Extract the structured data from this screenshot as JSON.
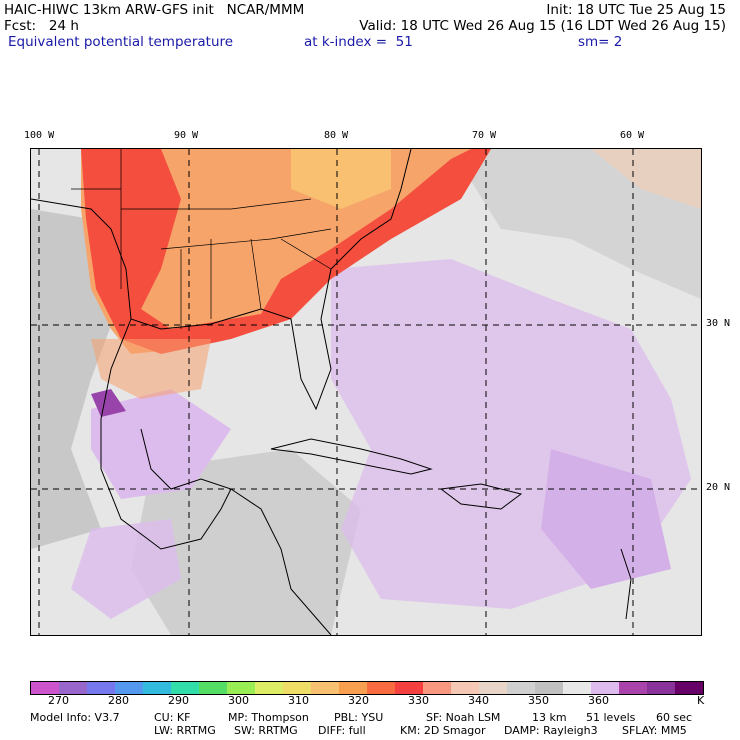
{
  "header": {
    "line1_left": "HAIC-HIWC 13km ARW-GFS init   NCAR/MMM",
    "line1_right": "Init: 18 UTC Tue 25 Aug 15",
    "line2_left": "Fcst:   24 h",
    "line2_right": "Valid: 18 UTC Wed 26 Aug 15 (16 LDT Wed 26 Aug 15)",
    "field_name": "Equivalent potential temperature",
    "level": "at k-index =  51",
    "smoothing": "sm= 2"
  },
  "map": {
    "lon_labels": [
      "100 W",
      "90 W",
      "80 W",
      "70 W",
      "60 W"
    ],
    "lat_labels": [
      "30 N",
      "20 N"
    ]
  },
  "colorbar": {
    "colors": [
      "#cc55cc",
      "#9966cc",
      "#7777ee",
      "#5599ee",
      "#33bbdd",
      "#33ddaa",
      "#55dd66",
      "#99ee55",
      "#ddee66",
      "#eedd66",
      "#f8c070",
      "#f8a050",
      "#f86a40",
      "#f64040",
      "#f89880",
      "#f4c8b4",
      "#e8d4c8",
      "#d0d0d0",
      "#c0c0c0",
      "#e8e8e8",
      "#ddbbee",
      "#aa44aa",
      "#883399",
      "#660066"
    ],
    "tick_labels": [
      "270",
      "280",
      "290",
      "300",
      "310",
      "320",
      "330",
      "340",
      "350",
      "360"
    ],
    "units": "K"
  },
  "footer": {
    "line1": [
      "Model Info: V3.7",
      "CU: KF",
      "MP: Thompson",
      "PBL: YSU",
      "SF: Noah LSM",
      "13 km",
      "51 levels",
      "60 sec"
    ],
    "line2": [
      "LW: RRTMG",
      "SW: RRTMG",
      "DIFF: full",
      "KM: 2D Smagor",
      "DAMP: Rayleigh3",
      "SFLAY: MM5"
    ]
  }
}
